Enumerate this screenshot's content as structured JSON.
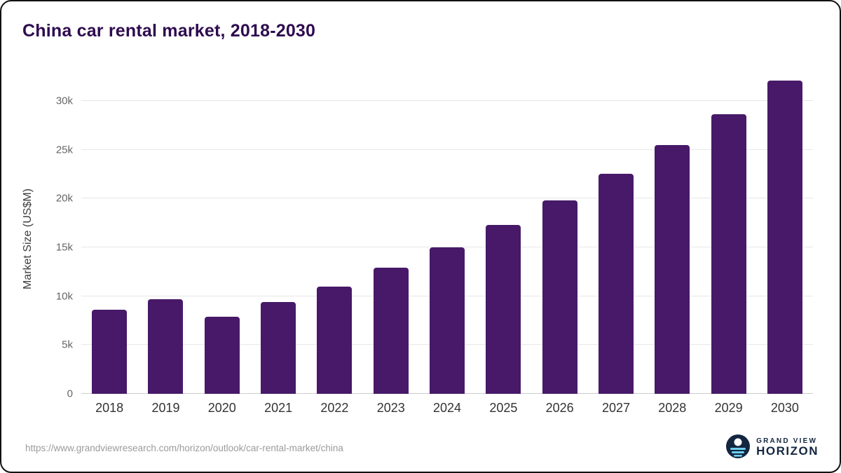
{
  "title": "China car rental market, 2018-2030",
  "source_url": "https://www.grandviewresearch.com/horizon/outlook/car-rental-market/china",
  "logo": {
    "line1": "GRAND VIEW",
    "line2": "HORIZON"
  },
  "colors": {
    "bar": "#471968",
    "title": "#2e0b4f",
    "logo_navy": "#13263f",
    "logo_waves": "#6ecff0",
    "gridline": "#e7e7e7"
  },
  "chart_data": {
    "type": "bar",
    "title": "China car rental market, 2018-2030",
    "xlabel": "",
    "ylabel": "Market Size (US$M)",
    "categories": [
      "2018",
      "2019",
      "2020",
      "2021",
      "2022",
      "2023",
      "2024",
      "2025",
      "2026",
      "2027",
      "2028",
      "2029",
      "2030"
    ],
    "values": [
      8600,
      9700,
      7900,
      9400,
      11000,
      12900,
      15000,
      17300,
      19800,
      22500,
      25500,
      28600,
      32100
    ],
    "ylim": [
      0,
      33000
    ],
    "ytick_values": [
      0,
      5000,
      10000,
      15000,
      20000,
      25000,
      30000
    ],
    "ytick_labels": [
      "0",
      "5k",
      "10k",
      "15k",
      "20k",
      "25k",
      "30k"
    ],
    "grid": true,
    "legend": "none"
  }
}
